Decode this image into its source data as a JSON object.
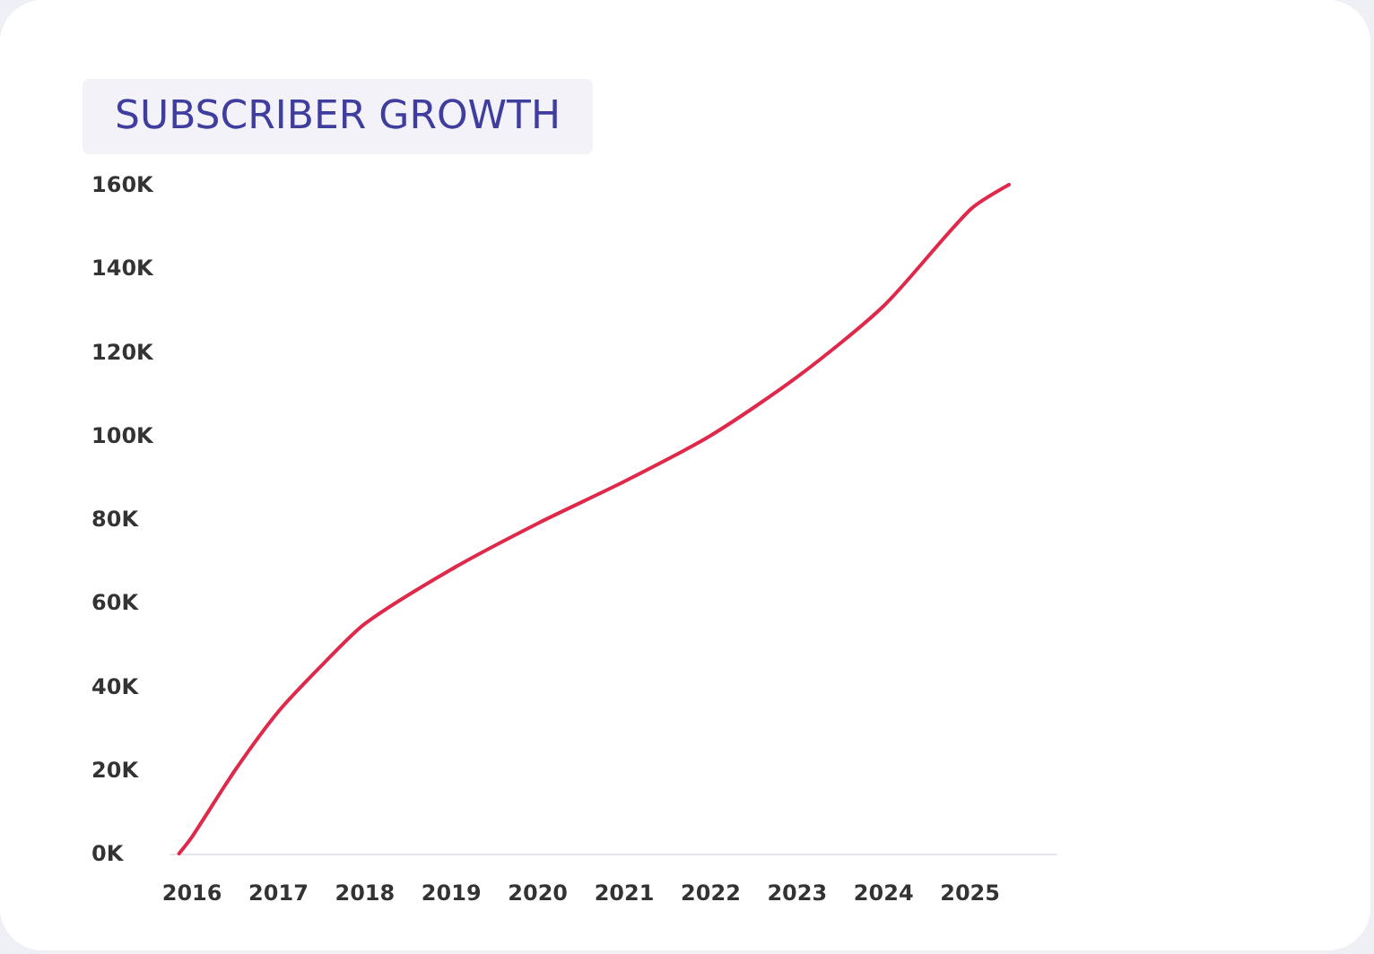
{
  "chart_data": {
    "type": "line",
    "title": "SUBSCRIBER GROWTH",
    "x": [
      2015.85,
      2016,
      2016.5,
      2017,
      2017.5,
      2018,
      2019,
      2020,
      2021,
      2022,
      2023,
      2024,
      2025,
      2025.45
    ],
    "series": [
      {
        "color": "#e0284a",
        "values": [
          0,
          4,
          20,
          34,
          45,
          55,
          68,
          79,
          89,
          100,
          114,
          131,
          154,
          160
        ]
      }
    ],
    "xlim": [
      2015.75,
      2026
    ],
    "xticks": [
      2016,
      2017,
      2018,
      2019,
      2020,
      2021,
      2022,
      2023,
      2024,
      2025
    ],
    "ylim": [
      0,
      160
    ],
    "yticks": [
      {
        "value": 0,
        "label": "0K"
      },
      {
        "value": 20,
        "label": "20K"
      },
      {
        "value": 40,
        "label": "40K"
      },
      {
        "value": 60,
        "label": "60K"
      },
      {
        "value": 80,
        "label": "80K"
      },
      {
        "value": 100,
        "label": "100K"
      },
      {
        "value": 120,
        "label": "120K"
      },
      {
        "value": 140,
        "label": "140K"
      },
      {
        "value": 160,
        "label": "160K"
      }
    ],
    "grid": false,
    "marker": "none",
    "line_style": "solid"
  }
}
